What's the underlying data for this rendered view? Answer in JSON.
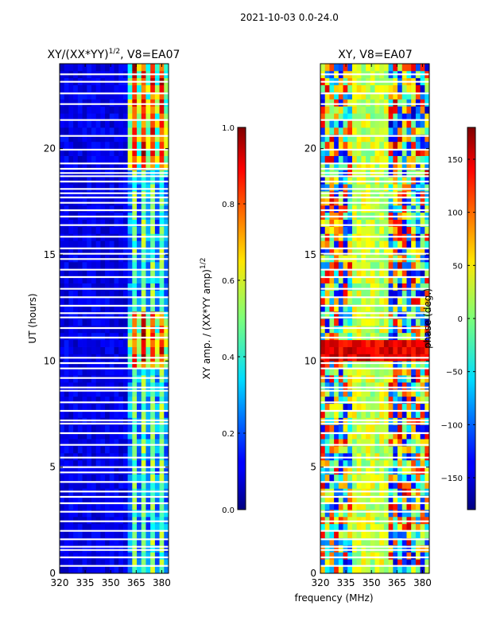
{
  "figure": {
    "suptitle": "2021-10-03 0.0-24.0",
    "shared_xlabel": "frequency (MHz)"
  },
  "chart_data": [
    {
      "type": "heatmap",
      "title": "XY/(XX*YY)^1/2, V8=EA07",
      "title_main": "XY/(XX*YY)",
      "title_sup": "1/2",
      "title_tail": ", V8=EA07",
      "xlabel": "",
      "ylabel": "UT (hours)",
      "xlim": [
        320,
        384
      ],
      "ylim": [
        0,
        24
      ],
      "xticks": [
        320,
        335,
        350,
        365,
        380
      ],
      "yticks": [
        0,
        5,
        10,
        15,
        20
      ],
      "colorbar": {
        "label": "XY amp. / (XX*YY amp)^1/2",
        "label_main": "XY amp. / (XX*YY amp)",
        "label_sup": "1/2",
        "range": [
          0.0,
          1.0
        ],
        "ticks": [
          "0.0",
          "0.2",
          "0.4",
          "0.6",
          "0.8",
          "1.0"
        ],
        "tick_values": [
          0.0,
          0.2,
          0.4,
          0.6,
          0.8,
          1.0
        ],
        "colormap": "jet"
      },
      "bright_freq_band_mhz": [
        360,
        384
      ],
      "notes": "Low amplitude (~0.05-0.15) below 360 MHz; channels above 360 MHz show 0.3-1.0 with strongest values near 10-12 UT and after 19 UT."
    },
    {
      "type": "heatmap",
      "title": "XY, V8=EA07",
      "xlabel": "",
      "ylabel": "",
      "xlim": [
        320,
        384
      ],
      "ylim": [
        0,
        24
      ],
      "xticks": [
        320,
        335,
        350,
        365,
        380
      ],
      "yticks": [
        0,
        5,
        10,
        15,
        20
      ],
      "colorbar": {
        "label": "phase (deg.)",
        "range": [
          -180,
          180
        ],
        "ticks": [
          "150",
          "100",
          "50",
          "0",
          "−50",
          "−100",
          "−150"
        ],
        "tick_values": [
          150,
          100,
          50,
          0,
          -50,
          -100,
          -150
        ],
        "colormap": "jet"
      },
      "notes": "Phase mostly 0 to 60 deg between 340-360 MHz; strong variation near 320-340 MHz and 365-384 MHz; band of ~160 deg near 10-11 UT."
    }
  ],
  "flagged_ut_hours": [
    0.35,
    0.75,
    1.1,
    1.25,
    1.6,
    2.0,
    2.45,
    2.9,
    3.3,
    3.6,
    3.85,
    4.3,
    4.75,
    5.0,
    5.45,
    6.05,
    6.6,
    7.05,
    7.2,
    7.65,
    8.05,
    8.6,
    8.75,
    9.2,
    9.65,
    9.9,
    10.15,
    11.1,
    11.55,
    12.05,
    12.25,
    12.6,
    13.0,
    13.4,
    13.95,
    14.3,
    14.8,
    15.05,
    15.3,
    15.85,
    16.4,
    16.8,
    17.1,
    17.45,
    17.7,
    17.9,
    18.1,
    18.45,
    18.7,
    18.85,
    19.05,
    19.3,
    19.95,
    20.6,
    21.35,
    22.1,
    22.6,
    23.15,
    23.5
  ]
}
